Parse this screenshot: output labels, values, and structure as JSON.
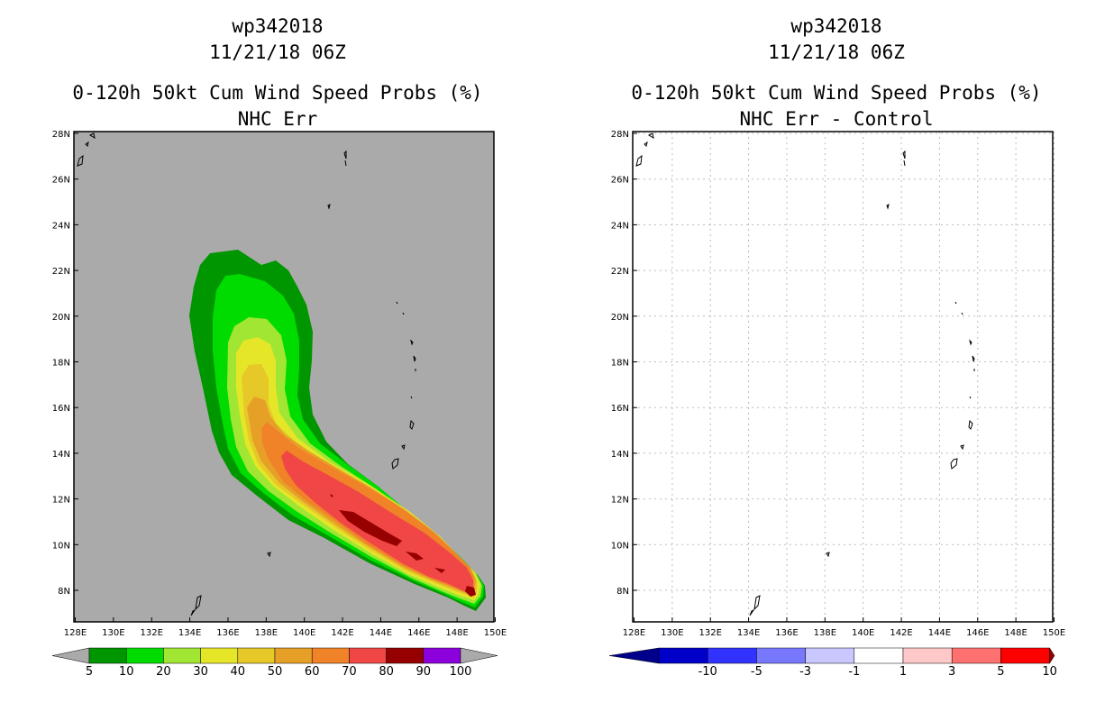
{
  "left_panel": {
    "storm_id": "wp342018",
    "datetime": "11/21/18 06Z",
    "product": "0-120h 50kt Cum Wind Speed Probs (%)",
    "subtitle": "NHC Err",
    "x_ticks": [
      "128E",
      "130E",
      "132E",
      "134E",
      "136E",
      "138E",
      "140E",
      "142E",
      "144E",
      "146E",
      "148E",
      "150E"
    ],
    "y_ticks": [
      "8N",
      "10N",
      "12N",
      "14N",
      "16N",
      "18N",
      "20N",
      "22N",
      "24N",
      "26N",
      "28N"
    ],
    "colorbar": {
      "labels": [
        "5",
        "10",
        "20",
        "30",
        "40",
        "50",
        "60",
        "70",
        "80",
        "90",
        "100"
      ],
      "colors": [
        "#009600",
        "#00dc00",
        "#a0e632",
        "#e6e628",
        "#e6c828",
        "#e6a028",
        "#f08228",
        "#f04646",
        "#960000",
        "#8c00dc"
      ]
    }
  },
  "right_panel": {
    "storm_id": "wp342018",
    "datetime": "11/21/18 06Z",
    "product": "0-120h 50kt Cum Wind Speed Probs (%)",
    "subtitle": "NHC Err - Control",
    "x_ticks": [
      "128E",
      "130E",
      "132E",
      "134E",
      "136E",
      "138E",
      "140E",
      "142E",
      "144E",
      "146E",
      "148E",
      "150E"
    ],
    "y_ticks": [
      "8N",
      "10N",
      "12N",
      "14N",
      "16N",
      "18N",
      "20N",
      "22N",
      "24N",
      "26N",
      "28N"
    ],
    "colorbar": {
      "labels": [
        "-10",
        "-5",
        "-3",
        "-1",
        "1",
        "3",
        "5",
        "10"
      ],
      "colors": [
        "#0000c8",
        "#3232ff",
        "#7878ff",
        "#c8c8ff",
        "#ffffff",
        "#ffc8c8",
        "#ff7070",
        "#ff0000"
      ],
      "end_colors": [
        "#00008c",
        "#8c0000"
      ]
    }
  },
  "colors": {
    "background_fill": "#aaaaaa"
  }
}
